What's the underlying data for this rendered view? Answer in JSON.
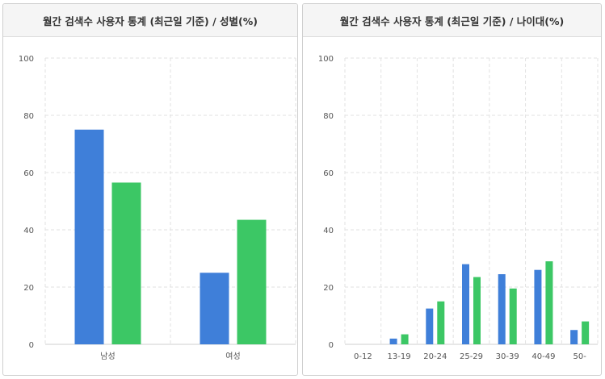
{
  "colors": {
    "series1": "#3f7fd9",
    "series2": "#3cc765",
    "grid": "#e2e2e2",
    "axis": "#cfcfcf"
  },
  "panels": [
    {
      "title": "월간 검색수 사용자 통계 (최근일 기준) / 성별(%)"
    },
    {
      "title": "월간 검색수 사용자 통계 (최근일 기준) / 나이대(%)"
    }
  ],
  "chart_data": [
    {
      "type": "bar",
      "title": "월간 검색수 사용자 통계 (최근일 기준) / 성별(%)",
      "categories": [
        "남성",
        "여성"
      ],
      "series": [
        {
          "values": [
            75,
            25
          ]
        },
        {
          "values": [
            56.5,
            43.5
          ]
        }
      ],
      "ylim": [
        0,
        100
      ],
      "yticks": [
        0,
        20,
        40,
        60,
        80,
        100
      ],
      "grid": true
    },
    {
      "type": "bar",
      "title": "월간 검색수 사용자 통계 (최근일 기준) / 나이대(%)",
      "categories": [
        "0-12",
        "13-19",
        "20-24",
        "25-29",
        "30-39",
        "40-49",
        "50-"
      ],
      "series": [
        {
          "values": [
            0,
            2,
            12.5,
            28,
            24.5,
            26,
            5
          ]
        },
        {
          "values": [
            0,
            3.5,
            15,
            23.5,
            19.5,
            29,
            8
          ]
        }
      ],
      "ylim": [
        0,
        100
      ],
      "yticks": [
        0,
        20,
        40,
        60,
        80,
        100
      ],
      "grid": true
    }
  ]
}
